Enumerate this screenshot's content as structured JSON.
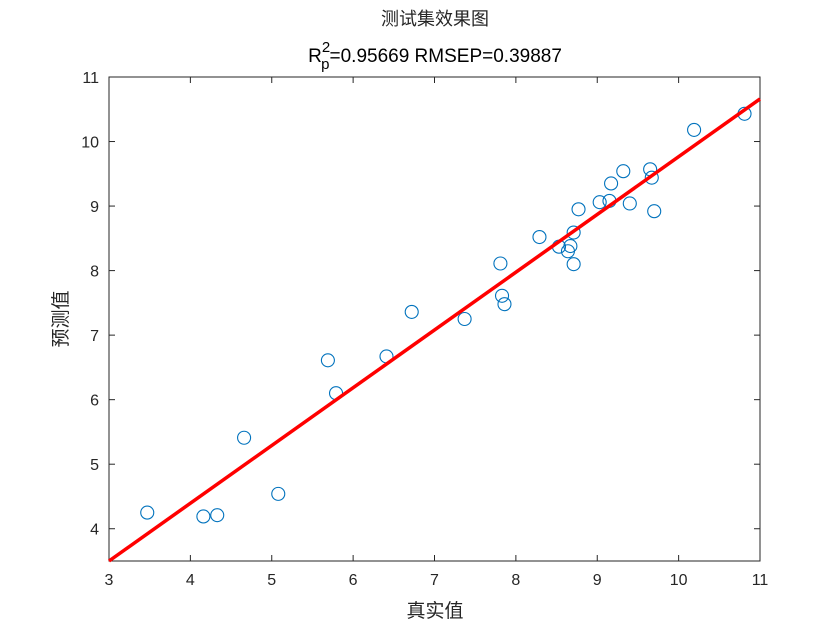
{
  "chart_data": {
    "type": "scatter",
    "title": "测试集效果图",
    "subtitle": {
      "r_symbol": "R",
      "superscript": "2",
      "subscript": "p",
      "rest": "=0.95669  RMSEP=0.39887"
    },
    "xlabel": "真实值",
    "ylabel": "预测值",
    "xlim": [
      3,
      11
    ],
    "ylim": [
      3.5,
      11
    ],
    "xticks": [
      "3",
      "4",
      "5",
      "6",
      "7",
      "8",
      "9",
      "10",
      "11"
    ],
    "yticks": [
      "4",
      "5",
      "6",
      "7",
      "8",
      "9",
      "10",
      "11"
    ],
    "grid": false,
    "marker": "open-circle",
    "marker_color": "#0072BD",
    "fit_line_color": "#FF0000",
    "fit_line": {
      "x": [
        3,
        11
      ],
      "y": [
        3.5,
        10.66
      ]
    },
    "points": [
      {
        "x": 3.47,
        "y": 4.25
      },
      {
        "x": 4.16,
        "y": 4.19
      },
      {
        "x": 4.33,
        "y": 4.21
      },
      {
        "x": 4.66,
        "y": 5.41
      },
      {
        "x": 5.08,
        "y": 4.54
      },
      {
        "x": 5.69,
        "y": 6.61
      },
      {
        "x": 5.79,
        "y": 6.1
      },
      {
        "x": 6.41,
        "y": 6.67
      },
      {
        "x": 6.72,
        "y": 7.36
      },
      {
        "x": 7.37,
        "y": 7.25
      },
      {
        "x": 7.81,
        "y": 8.11
      },
      {
        "x": 7.83,
        "y": 7.61
      },
      {
        "x": 7.86,
        "y": 7.48
      },
      {
        "x": 8.29,
        "y": 8.52
      },
      {
        "x": 8.53,
        "y": 8.37
      },
      {
        "x": 8.64,
        "y": 8.3
      },
      {
        "x": 8.67,
        "y": 8.38
      },
      {
        "x": 8.71,
        "y": 8.1
      },
      {
        "x": 8.71,
        "y": 8.59
      },
      {
        "x": 8.77,
        "y": 8.95
      },
      {
        "x": 9.03,
        "y": 9.06
      },
      {
        "x": 9.15,
        "y": 9.08
      },
      {
        "x": 9.17,
        "y": 9.35
      },
      {
        "x": 9.32,
        "y": 9.54
      },
      {
        "x": 9.4,
        "y": 9.04
      },
      {
        "x": 9.65,
        "y": 9.57
      },
      {
        "x": 9.67,
        "y": 9.44
      },
      {
        "x": 9.7,
        "y": 8.92
      },
      {
        "x": 10.19,
        "y": 10.18
      },
      {
        "x": 10.81,
        "y": 10.43
      }
    ]
  }
}
